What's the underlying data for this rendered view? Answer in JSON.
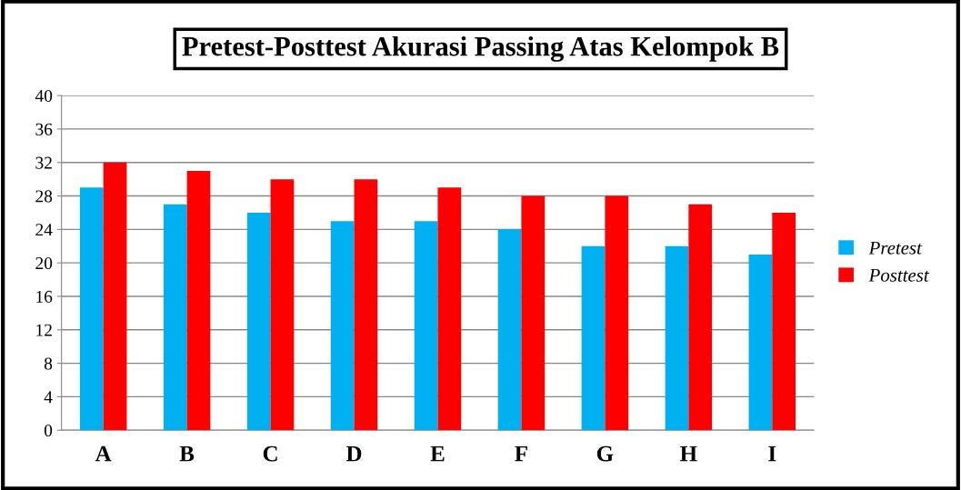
{
  "chart_data": {
    "type": "bar",
    "title": "Pretest-Posttest Akurasi Passing Atas Kelompok B",
    "categories": [
      "A",
      "B",
      "C",
      "D",
      "E",
      "F",
      "G",
      "H",
      "I"
    ],
    "series": [
      {
        "name": "Pretest",
        "color": "#00b0f0",
        "values": [
          29,
          27,
          26,
          25,
          25,
          24,
          22,
          22,
          21
        ]
      },
      {
        "name": "Posttest",
        "color": "#ff0000",
        "values": [
          32,
          31,
          30,
          30,
          29,
          28,
          28,
          27,
          26
        ]
      }
    ],
    "ylim": [
      0,
      40
    ],
    "yticks": [
      0,
      4,
      8,
      12,
      16,
      20,
      24,
      28,
      32,
      36,
      40
    ],
    "grid": "y",
    "legend": "right"
  }
}
